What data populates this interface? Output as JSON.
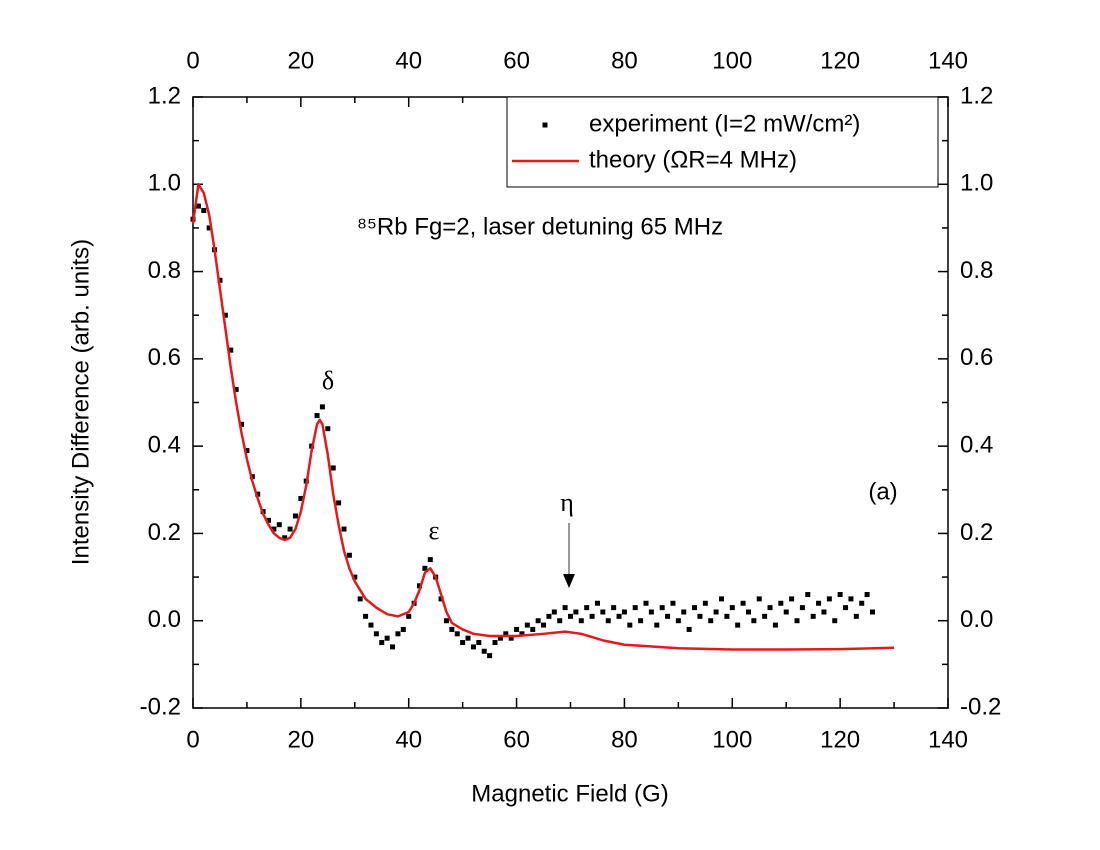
{
  "chart_data": {
    "type": "scatter",
    "xlabel": "Magnetic Field (G)",
    "ylabel": "Intensity Difference (arb. units)",
    "annotations": [
      "⁸⁵Rb Fg=2, laser detuning 65 MHz",
      "δ",
      "ε",
      "η",
      "(a)"
    ],
    "xlim": [
      0,
      140
    ],
    "xticks": [
      0,
      20,
      40,
      60,
      80,
      100,
      120,
      140
    ],
    "ylim": [
      -0.2,
      1.2
    ],
    "yticks": [
      -0.2,
      {
        "value": 0,
        "label": "0.0"
      },
      0.2,
      0.4,
      0.6,
      0.8,
      {
        "value": 1,
        "label": "1.0"
      },
      1.2
    ],
    "legend": "upper right",
    "series": [
      {
        "name": "experiment (I=2 mW/cm²)",
        "color": "#000000",
        "type": "scatter",
        "x": [
          0,
          1,
          2,
          3,
          4,
          5,
          6,
          7,
          8,
          9,
          10,
          11,
          12,
          13,
          14,
          15,
          16,
          17,
          18,
          19,
          20,
          21,
          22,
          23,
          24,
          25,
          26,
          27,
          28,
          29,
          30,
          31,
          32,
          33,
          34,
          35,
          36,
          37,
          38,
          39,
          40,
          41,
          42,
          43,
          44,
          45,
          46,
          47,
          48,
          49,
          50,
          51,
          52,
          53,
          54,
          55,
          56,
          57,
          58,
          59,
          60,
          61,
          62,
          63,
          64,
          65,
          66,
          67,
          68,
          69,
          70,
          71,
          72,
          73,
          74,
          75,
          76,
          77,
          78,
          79,
          80,
          81,
          82,
          83,
          84,
          85,
          86,
          87,
          88,
          89,
          90,
          91,
          92,
          93,
          94,
          95,
          96,
          97,
          98,
          99,
          100,
          101,
          102,
          103,
          104,
          105,
          106,
          107,
          108,
          109,
          110,
          111,
          112,
          113,
          114,
          115,
          116,
          117,
          118,
          119,
          120,
          121,
          122,
          123,
          124,
          125,
          126
        ],
        "values": [
          0.92,
          0.95,
          0.94,
          0.9,
          0.85,
          0.78,
          0.7,
          0.62,
          0.53,
          0.45,
          0.39,
          0.33,
          0.29,
          0.25,
          0.23,
          0.21,
          0.22,
          0.19,
          0.21,
          0.24,
          0.28,
          0.32,
          0.4,
          0.47,
          0.49,
          0.44,
          0.35,
          0.27,
          0.21,
          0.15,
          0.1,
          0.05,
          0.01,
          -0.01,
          -0.03,
          -0.05,
          -0.04,
          -0.06,
          -0.03,
          -0.02,
          0.01,
          0.04,
          0.08,
          0.12,
          0.14,
          0.1,
          0.05,
          0.0,
          -0.02,
          -0.03,
          -0.05,
          -0.04,
          -0.06,
          -0.05,
          -0.07,
          -0.08,
          -0.05,
          -0.04,
          -0.03,
          -0.04,
          -0.02,
          -0.03,
          -0.01,
          -0.02,
          0.0,
          -0.01,
          0.01,
          0.02,
          0.0,
          0.03,
          0.01,
          0.02,
          0.0,
          0.03,
          0.01,
          0.04,
          0.02,
          0.0,
          0.03,
          0.01,
          0.02,
          -0.01,
          0.03,
          0.0,
          0.04,
          0.02,
          -0.01,
          0.03,
          0.01,
          0.04,
          0.0,
          0.02,
          -0.02,
          0.03,
          0.01,
          0.04,
          0.0,
          0.02,
          0.05,
          0.01,
          0.03,
          -0.01,
          0.04,
          0.02,
          0.0,
          0.05,
          0.01,
          0.03,
          -0.01,
          0.04,
          0.02,
          0.05,
          0.0,
          0.03,
          0.06,
          0.01,
          0.04,
          0.02,
          0.05,
          0.0,
          0.06,
          0.03,
          0.05,
          0.01,
          0.04,
          0.06,
          0.02
        ]
      },
      {
        "name": "theory (ΩR=4 MHz)",
        "color": "#e31a1c",
        "type": "line",
        "x": [
          0,
          1,
          2,
          3,
          4,
          5,
          6,
          7,
          8,
          9,
          10,
          11,
          12,
          13,
          14,
          15,
          16,
          17,
          18,
          19,
          20,
          21,
          22,
          23,
          23.5,
          24,
          25,
          26,
          27,
          28,
          29,
          30,
          32,
          34,
          36,
          38,
          40,
          41,
          42,
          43,
          44,
          45,
          46,
          47,
          48,
          50,
          52,
          55,
          60,
          65,
          69,
          72,
          76,
          80,
          90,
          100,
          110,
          120,
          130
        ],
        "values": [
          0.91,
          1.0,
          0.98,
          0.93,
          0.85,
          0.76,
          0.67,
          0.58,
          0.5,
          0.43,
          0.37,
          0.32,
          0.28,
          0.245,
          0.22,
          0.2,
          0.19,
          0.185,
          0.19,
          0.21,
          0.25,
          0.31,
          0.39,
          0.45,
          0.46,
          0.45,
          0.38,
          0.29,
          0.22,
          0.16,
          0.12,
          0.09,
          0.05,
          0.03,
          0.015,
          0.01,
          0.02,
          0.04,
          0.07,
          0.11,
          0.12,
          0.1,
          0.06,
          0.02,
          -0.005,
          -0.02,
          -0.03,
          -0.035,
          -0.035,
          -0.03,
          -0.025,
          -0.03,
          -0.045,
          -0.055,
          -0.063,
          -0.066,
          -0.066,
          -0.065,
          -0.062
        ]
      }
    ]
  }
}
